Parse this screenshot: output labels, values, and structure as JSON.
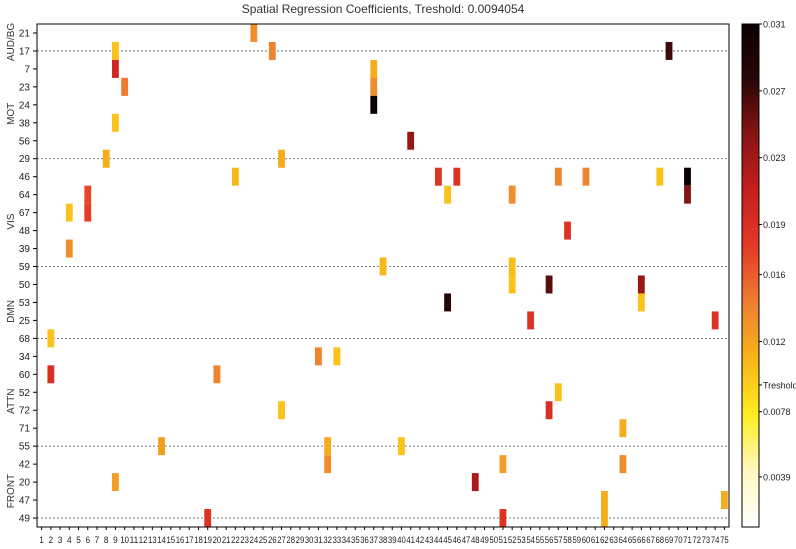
{
  "chart_data": {
    "type": "heatmap",
    "title": "Spatial Regression Coefficients, Treshold: 0.0094054",
    "xlabel": "",
    "ylabel": "",
    "x_categories": [
      "1",
      "2",
      "3",
      "4",
      "5",
      "6",
      "7",
      "8",
      "9",
      "10",
      "11",
      "12",
      "13",
      "14",
      "15",
      "16",
      "17",
      "18",
      "19",
      "20",
      "21",
      "22",
      "23",
      "24",
      "25",
      "26",
      "27",
      "28",
      "29",
      "30",
      "31",
      "32",
      "33",
      "34",
      "35",
      "36",
      "37",
      "38",
      "39",
      "40",
      "41",
      "42",
      "43",
      "44",
      "45",
      "46",
      "47",
      "48",
      "49",
      "50",
      "51",
      "52",
      "53",
      "54",
      "55",
      "56",
      "57",
      "58",
      "59",
      "60",
      "61",
      "62",
      "63",
      "64",
      "65",
      "66",
      "67",
      "68",
      "69",
      "70",
      "71",
      "72",
      "73",
      "74",
      "75"
    ],
    "y_categories": [
      "21",
      "17",
      "7",
      "23",
      "24",
      "38",
      "56",
      "29",
      "46",
      "64",
      "67",
      "48",
      "39",
      "59",
      "50",
      "53",
      "25",
      "68",
      "34",
      "60",
      "52",
      "72",
      "71",
      "55",
      "42",
      "20",
      "47",
      "49"
    ],
    "groups": [
      {
        "label": "AUD/BG",
        "rows": [
          "21",
          "17"
        ]
      },
      {
        "label": "MOT",
        "rows": [
          "7",
          "23",
          "24",
          "38",
          "56",
          "29"
        ]
      },
      {
        "label": "VIS",
        "rows": [
          "46",
          "64",
          "67",
          "48",
          "39",
          "59"
        ]
      },
      {
        "label": "DMN",
        "rows": [
          "50",
          "53",
          "25",
          "68"
        ]
      },
      {
        "label": "ATTN",
        "rows": [
          "34",
          "60",
          "52",
          "72",
          "71",
          "55"
        ]
      },
      {
        "label": "FRONT",
        "rows": [
          "42",
          "20",
          "47",
          "49"
        ]
      }
    ],
    "colorbar": {
      "min": 0.0009,
      "max": 0.031,
      "tick_labels": [
        "0.031",
        "0.027",
        "0.023",
        "0.019",
        "0.016",
        "0.012",
        "Treshold",
        "0.0078",
        "0.0039"
      ],
      "tick_values": [
        0.031,
        0.027,
        0.023,
        0.019,
        0.016,
        0.012,
        0.0094,
        0.0078,
        0.0039
      ],
      "colors": [
        "#ffffff",
        "#fff7c0",
        "#ffee20",
        "#f8b618",
        "#ef8030",
        "#e53a28",
        "#c81e1e",
        "#8a1414",
        "#2a0606",
        "#0a0000"
      ]
    },
    "cells": [
      {
        "x": 24,
        "y": "21",
        "value": 0.0135
      },
      {
        "x": 9,
        "y": "17",
        "value": 0.0102
      },
      {
        "x": 26,
        "y": "17",
        "value": 0.014
      },
      {
        "x": 69,
        "y": "17",
        "value": 0.027
      },
      {
        "x": 9,
        "y": "7",
        "value": 0.02
      },
      {
        "x": 37,
        "y": "7",
        "value": 0.0115
      },
      {
        "x": 10,
        "y": "23",
        "value": 0.0145
      },
      {
        "x": 37,
        "y": "23",
        "value": 0.0135
      },
      {
        "x": 37,
        "y": "24",
        "value": 0.031
      },
      {
        "x": 9,
        "y": "38",
        "value": 0.0102
      },
      {
        "x": 41,
        "y": "56",
        "value": 0.0235
      },
      {
        "x": 8,
        "y": "29",
        "value": 0.0115
      },
      {
        "x": 27,
        "y": "29",
        "value": 0.0115
      },
      {
        "x": 22,
        "y": "46",
        "value": 0.0108
      },
      {
        "x": 44,
        "y": "46",
        "value": 0.0185
      },
      {
        "x": 46,
        "y": "46",
        "value": 0.0185
      },
      {
        "x": 57,
        "y": "46",
        "value": 0.014
      },
      {
        "x": 60,
        "y": "46",
        "value": 0.014
      },
      {
        "x": 68,
        "y": "46",
        "value": 0.0102
      },
      {
        "x": 71,
        "y": "46",
        "value": 0.031
      },
      {
        "x": 6,
        "y": "64",
        "value": 0.017
      },
      {
        "x": 45,
        "y": "64",
        "value": 0.0102
      },
      {
        "x": 52,
        "y": "64",
        "value": 0.0135
      },
      {
        "x": 71,
        "y": "64",
        "value": 0.0245
      },
      {
        "x": 4,
        "y": "67",
        "value": 0.0102
      },
      {
        "x": 6,
        "y": "67",
        "value": 0.0175
      },
      {
        "x": 58,
        "y": "48",
        "value": 0.0185
      },
      {
        "x": 4,
        "y": "39",
        "value": 0.0135
      },
      {
        "x": 38,
        "y": "59",
        "value": 0.0108
      },
      {
        "x": 52,
        "y": "59",
        "value": 0.0105
      },
      {
        "x": 52,
        "y": "50",
        "value": 0.0102
      },
      {
        "x": 56,
        "y": "50",
        "value": 0.026
      },
      {
        "x": 66,
        "y": "50",
        "value": 0.0235
      },
      {
        "x": 45,
        "y": "53",
        "value": 0.028
      },
      {
        "x": 66,
        "y": "53",
        "value": 0.0102
      },
      {
        "x": 54,
        "y": "25",
        "value": 0.0185
      },
      {
        "x": 74,
        "y": "25",
        "value": 0.0185
      },
      {
        "x": 2,
        "y": "68",
        "value": 0.0102
      },
      {
        "x": 31,
        "y": "34",
        "value": 0.014
      },
      {
        "x": 33,
        "y": "34",
        "value": 0.0102
      },
      {
        "x": 2,
        "y": "60",
        "value": 0.019
      },
      {
        "x": 20,
        "y": "60",
        "value": 0.014
      },
      {
        "x": 57,
        "y": "52",
        "value": 0.0102
      },
      {
        "x": 27,
        "y": "72",
        "value": 0.0102
      },
      {
        "x": 56,
        "y": "72",
        "value": 0.019
      },
      {
        "x": 64,
        "y": "71",
        "value": 0.0115
      },
      {
        "x": 14,
        "y": "55",
        "value": 0.0125
      },
      {
        "x": 32,
        "y": "55",
        "value": 0.0115
      },
      {
        "x": 40,
        "y": "55",
        "value": 0.0102
      },
      {
        "x": 32,
        "y": "42",
        "value": 0.0135
      },
      {
        "x": 51,
        "y": "42",
        "value": 0.0125
      },
      {
        "x": 64,
        "y": "42",
        "value": 0.0135
      },
      {
        "x": 9,
        "y": "20",
        "value": 0.0125
      },
      {
        "x": 48,
        "y": "20",
        "value": 0.0225
      },
      {
        "x": 62,
        "y": "47",
        "value": 0.0115
      },
      {
        "x": 75,
        "y": "47",
        "value": 0.0115
      },
      {
        "x": 19,
        "y": "49",
        "value": 0.0185
      },
      {
        "x": 51,
        "y": "49",
        "value": 0.0185
      },
      {
        "x": 62,
        "y": "49",
        "value": 0.0115
      }
    ]
  }
}
